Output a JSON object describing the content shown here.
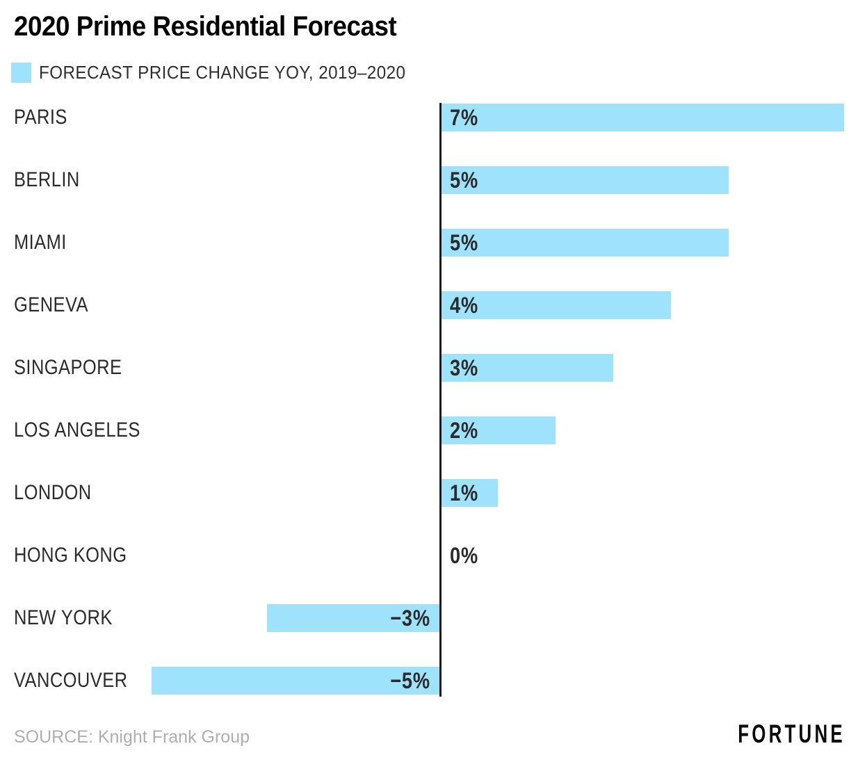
{
  "title": "2020 Prime Residential Forecast",
  "legend": {
    "label": "FORECAST PRICE CHANGE YOY, 2019–2020",
    "swatch_color": "#9EE2FB"
  },
  "chart_data": {
    "type": "bar",
    "orientation": "horizontal",
    "title": "2020 Prime Residential Forecast",
    "series_name": "FORECAST PRICE CHANGE YOY, 2019–2020",
    "categories": [
      "PARIS",
      "BERLIN",
      "MIAMI",
      "GENEVA",
      "SINGAPORE",
      "LOS ANGELES",
      "LONDON",
      "HONG KONG",
      "NEW YORK",
      "VANCOUVER"
    ],
    "values": [
      7,
      5,
      5,
      4,
      3,
      2,
      1,
      0,
      -3,
      -5
    ],
    "value_labels": [
      "7%",
      "5%",
      "5%",
      "4%",
      "3%",
      "2%",
      "1%",
      "0%",
      "−3%",
      "−5%"
    ],
    "unit": "%",
    "xlabel": "",
    "ylabel": "",
    "xlim": [
      -5,
      7
    ],
    "grid": false,
    "legend_position": "top-left",
    "bar_color": "#9EE2FB",
    "axis_color": "#1a1a1a",
    "label_color": "#2b2b2b"
  },
  "footer": {
    "source": "SOURCE: Knight Frank Group",
    "brand": "FORTUNE"
  }
}
